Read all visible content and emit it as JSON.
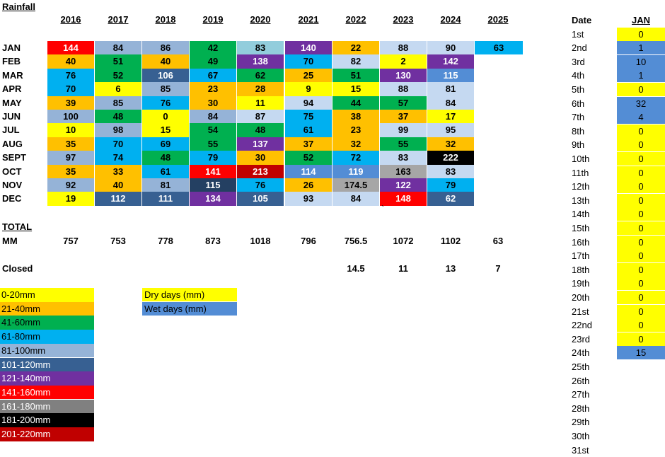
{
  "title": "Rainfall",
  "years": [
    "2016",
    "2017",
    "2018",
    "2019",
    "2020",
    "2021",
    "2022",
    "2023",
    "2024",
    "2025"
  ],
  "months": [
    "JAN",
    "FEB",
    "MAR",
    "APR",
    "MAY",
    "JUN",
    "JUL",
    "AUG",
    "SEPT",
    "OCT",
    "NOV",
    "DEC"
  ],
  "values": [
    [
      "144",
      "84",
      "86",
      "42",
      "83",
      "140",
      "22",
      "88",
      "90",
      "63"
    ],
    [
      "40",
      "51",
      "40",
      "49",
      "138",
      "70",
      "82",
      "2",
      "142",
      ""
    ],
    [
      "76",
      "52",
      "106",
      "67",
      "62",
      "25",
      "51",
      "130",
      "115",
      ""
    ],
    [
      "70",
      "6",
      "85",
      "23",
      "28",
      "9",
      "15",
      "88",
      "81",
      ""
    ],
    [
      "39",
      "85",
      "76",
      "30",
      "11",
      "94",
      "44",
      "57",
      "84",
      ""
    ],
    [
      "100",
      "48",
      "0",
      "84",
      "87",
      "75",
      "38",
      "37",
      "17",
      ""
    ],
    [
      "10",
      "98",
      "15",
      "54",
      "48",
      "61",
      "23",
      "99",
      "95",
      ""
    ],
    [
      "35",
      "70",
      "69",
      "55",
      "137",
      "37",
      "32",
      "55",
      "32",
      ""
    ],
    [
      "97",
      "74",
      "48",
      "79",
      "30",
      "52",
      "72",
      "83",
      "222",
      ""
    ],
    [
      "35",
      "33",
      "61",
      "141",
      "213",
      "114",
      "119",
      "163",
      "83",
      ""
    ],
    [
      "92",
      "40",
      "81",
      "115",
      "76",
      "26",
      "174.5",
      "122",
      "79",
      ""
    ],
    [
      "19",
      "112",
      "111",
      "134",
      "105",
      "93",
      "84",
      "148",
      "62",
      ""
    ]
  ],
  "cell_colors": [
    [
      "#ff0000",
      "#95b3d7",
      "#95b3d7",
      "#00b050",
      "#92cddc",
      "#7030a0",
      "#ffc000",
      "#c5d9f1",
      "#c5d9f1",
      "#00b0f0"
    ],
    [
      "#ffc000",
      "#00b050",
      "#ffc000",
      "#00b050",
      "#7030a0",
      "#00b0f0",
      "#c5d9f1",
      "#ffff00",
      "#7030a0",
      ""
    ],
    [
      "#00b0f0",
      "#00b050",
      "#376092",
      "#00b0f0",
      "#00b050",
      "#ffc000",
      "#00b050",
      "#7030a0",
      "#538dd5",
      ""
    ],
    [
      "#00b0f0",
      "#ffff00",
      "#95b3d7",
      "#ffc000",
      "#ffc000",
      "#ffff00",
      "#ffff00",
      "#c5d9f1",
      "#c5d9f1",
      ""
    ],
    [
      "#ffc000",
      "#95b3d7",
      "#00b0f0",
      "#ffc000",
      "#ffff00",
      "#c5d9f1",
      "#00b050",
      "#00b050",
      "#c5d9f1",
      ""
    ],
    [
      "#95b3d7",
      "#00b050",
      "#ffff00",
      "#95b3d7",
      "#c5d9f1",
      "#00b0f0",
      "#ffc000",
      "#ffc000",
      "#ffff00",
      ""
    ],
    [
      "#ffff00",
      "#95b3d7",
      "#ffff00",
      "#00b050",
      "#00b050",
      "#00b0f0",
      "#ffc000",
      "#c5d9f1",
      "#c5d9f1",
      ""
    ],
    [
      "#ffc000",
      "#00b0f0",
      "#00b0f0",
      "#00b050",
      "#7030a0",
      "#ffc000",
      "#ffc000",
      "#00b050",
      "#ffc000",
      ""
    ],
    [
      "#95b3d7",
      "#00b0f0",
      "#00b050",
      "#00b0f0",
      "#ffc000",
      "#00b050",
      "#00b0f0",
      "#c5d9f1",
      "#000000",
      ""
    ],
    [
      "#ffc000",
      "#ffc000",
      "#00b0f0",
      "#ff0000",
      "#c00000",
      "#538dd5",
      "#538dd5",
      "#a6a6a6",
      "#c5d9f1",
      ""
    ],
    [
      "#95b3d7",
      "#ffc000",
      "#95b3d7",
      "#244062",
      "#00b0f0",
      "#ffc000",
      "#a6a6a6",
      "#7030a0",
      "#00b0f0",
      ""
    ],
    [
      "#ffff00",
      "#376092",
      "#376092",
      "#7030a0",
      "#376092",
      "#c5d9f1",
      "#c5d9f1",
      "#ff0000",
      "#376092",
      ""
    ]
  ],
  "white_text_colors": [
    "#376092",
    "#7030a0",
    "#ff0000",
    "#c00000",
    "#000000",
    "#244062",
    "#538dd5"
  ],
  "total_label": "TOTAL",
  "mm_label": "MM",
  "totals": [
    "757",
    "753",
    "778",
    "873",
    "1018",
    "796",
    "756.5",
    "1072",
    "1102",
    "63"
  ],
  "closed_label": "Closed",
  "closed": [
    "",
    "",
    "",
    "",
    "",
    "",
    "14.5",
    "11",
    "13",
    "7"
  ],
  "stray_mark": "`",
  "legend": [
    {
      "label": "0-20mm",
      "color": "#ffff00",
      "text": "#000000"
    },
    {
      "label": "21-40mm",
      "color": "#ffc000",
      "text": "#000000"
    },
    {
      "label": "41-60mm",
      "color": "#00b050",
      "text": "#000000"
    },
    {
      "label": "61-80mm",
      "color": "#00b0f0",
      "text": "#000000"
    },
    {
      "label": "81-100mm",
      "color": "#95b3d7",
      "text": "#000000"
    },
    {
      "label": "101-120mm",
      "color": "#376092",
      "text": "#ffffff"
    },
    {
      "label": "121-140mm",
      "color": "#7030a0",
      "text": "#ffffff"
    },
    {
      "label": "141-160mm",
      "color": "#ff0000",
      "text": "#ffffff"
    },
    {
      "label": "161-180mm",
      "color": "#808080",
      "text": "#ffffff"
    },
    {
      "label": "181-200mm",
      "color": "#000000",
      "text": "#ffffff"
    },
    {
      "label": "201-220mm",
      "color": "#c00000",
      "text": "#ffffff"
    }
  ],
  "dry_days_label": "Dry days   (mm)",
  "wet_days_label": "Wet days   (mm)",
  "dry_color": "#ffff00",
  "wet_color": "#538dd5",
  "date_header": "Date",
  "jan_header": "JAN",
  "dates": [
    "1st",
    "2nd",
    "3rd",
    "4th",
    "5th",
    "6th",
    "7th",
    "8th",
    "9th",
    "10th",
    "11th",
    "12th",
    "13th",
    "14th",
    "15th",
    "16th",
    "17th",
    "18th",
    "19th",
    "20th",
    "21st",
    "22nd",
    "23rd",
    "24th",
    "25th",
    "26th",
    "27th",
    "28th",
    "29th",
    "30th",
    "31st"
  ],
  "jan_daily": [
    "0",
    "1",
    "10",
    "1",
    "0",
    "32",
    "4",
    "0",
    "0",
    "0",
    "0",
    "0",
    "0",
    "0",
    "0",
    "0",
    "0",
    "0",
    "0",
    "0",
    "0",
    "0",
    "0",
    "15"
  ]
}
